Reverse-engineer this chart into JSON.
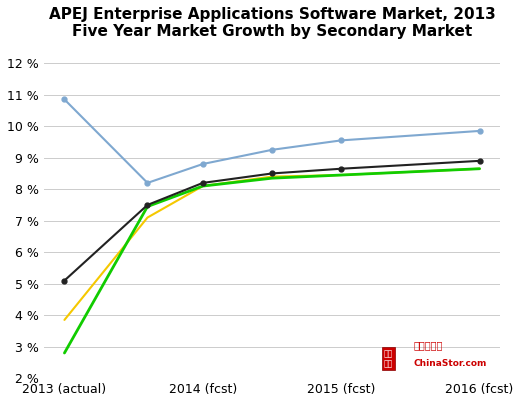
{
  "title_line1": "APEJ Enterprise Applications Software Market, 2013",
  "title_line2": "Five Year Market Growth by Secondary Market",
  "x_labels": [
    "2013 (actual)",
    "2014 (fcst)",
    "2015 (fcst)",
    "2016 (fcst)"
  ],
  "x_positions": [
    0,
    1,
    2,
    3
  ],
  "series": [
    {
      "name": "Blue",
      "color": "#7fa8d0",
      "values": [
        10.85,
        8.2,
        8.8,
        9.25,
        9.55,
        9.85
      ],
      "x_pos": [
        0,
        0.6,
        1,
        1.5,
        2,
        3
      ],
      "marker": "o",
      "linewidth": 1.5,
      "markersize": 3.5,
      "zorder": 3
    },
    {
      "name": "Black",
      "color": "#222222",
      "values": [
        5.1,
        7.5,
        8.2,
        8.5,
        8.65,
        8.9
      ],
      "x_pos": [
        0,
        0.6,
        1,
        1.5,
        2,
        3
      ],
      "marker": "o",
      "linewidth": 1.5,
      "markersize": 3.5,
      "zorder": 4
    },
    {
      "name": "Yellow",
      "color": "#f5c800",
      "values": [
        3.85,
        7.1,
        8.1,
        8.4,
        8.45,
        8.65
      ],
      "x_pos": [
        0,
        0.6,
        1,
        1.5,
        2,
        3
      ],
      "marker": null,
      "linewidth": 1.5,
      "markersize": 0,
      "zorder": 2
    },
    {
      "name": "Green",
      "color": "#11cc00",
      "values": [
        2.8,
        7.45,
        8.1,
        8.35,
        8.45,
        8.65
      ],
      "x_pos": [
        0,
        0.6,
        1,
        1.5,
        2,
        3
      ],
      "marker": null,
      "linewidth": 2.0,
      "markersize": 0,
      "zorder": 2
    }
  ],
  "xlim": [
    -0.15,
    3.15
  ],
  "ylim": [
    2.0,
    12.5
  ],
  "yticks": [
    2,
    3,
    4,
    5,
    6,
    7,
    8,
    9,
    10,
    11,
    12
  ],
  "background_color": "#ffffff",
  "grid_color": "#cccccc",
  "title_fontsize": 11,
  "tick_fontsize": 9
}
